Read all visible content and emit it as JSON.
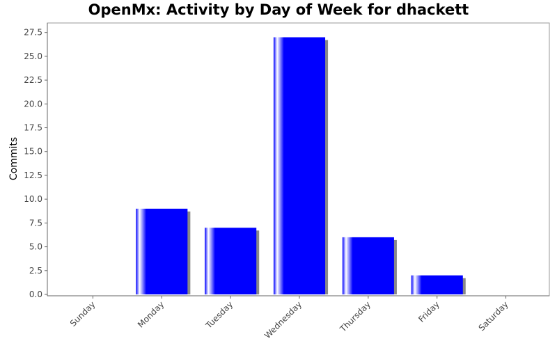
{
  "chart_data": {
    "type": "bar",
    "title": "OpenMx: Activity by Day of Week for dhackett",
    "xlabel": "",
    "ylabel": "Commits",
    "categories": [
      "Sunday",
      "Monday",
      "Tuesday",
      "Wednesday",
      "Thursday",
      "Friday",
      "Saturday"
    ],
    "values": [
      0,
      9,
      7,
      27,
      6,
      2,
      0
    ],
    "ylim": [
      0,
      28.5
    ],
    "yticks": [
      "0.0",
      "2.5",
      "5.0",
      "7.5",
      "10.0",
      "12.5",
      "15.0",
      "17.5",
      "20.0",
      "22.5",
      "25.0",
      "27.5"
    ],
    "bar_color": "#0000ff",
    "shadow_color": "#888888",
    "grid": false,
    "legend": "none"
  }
}
